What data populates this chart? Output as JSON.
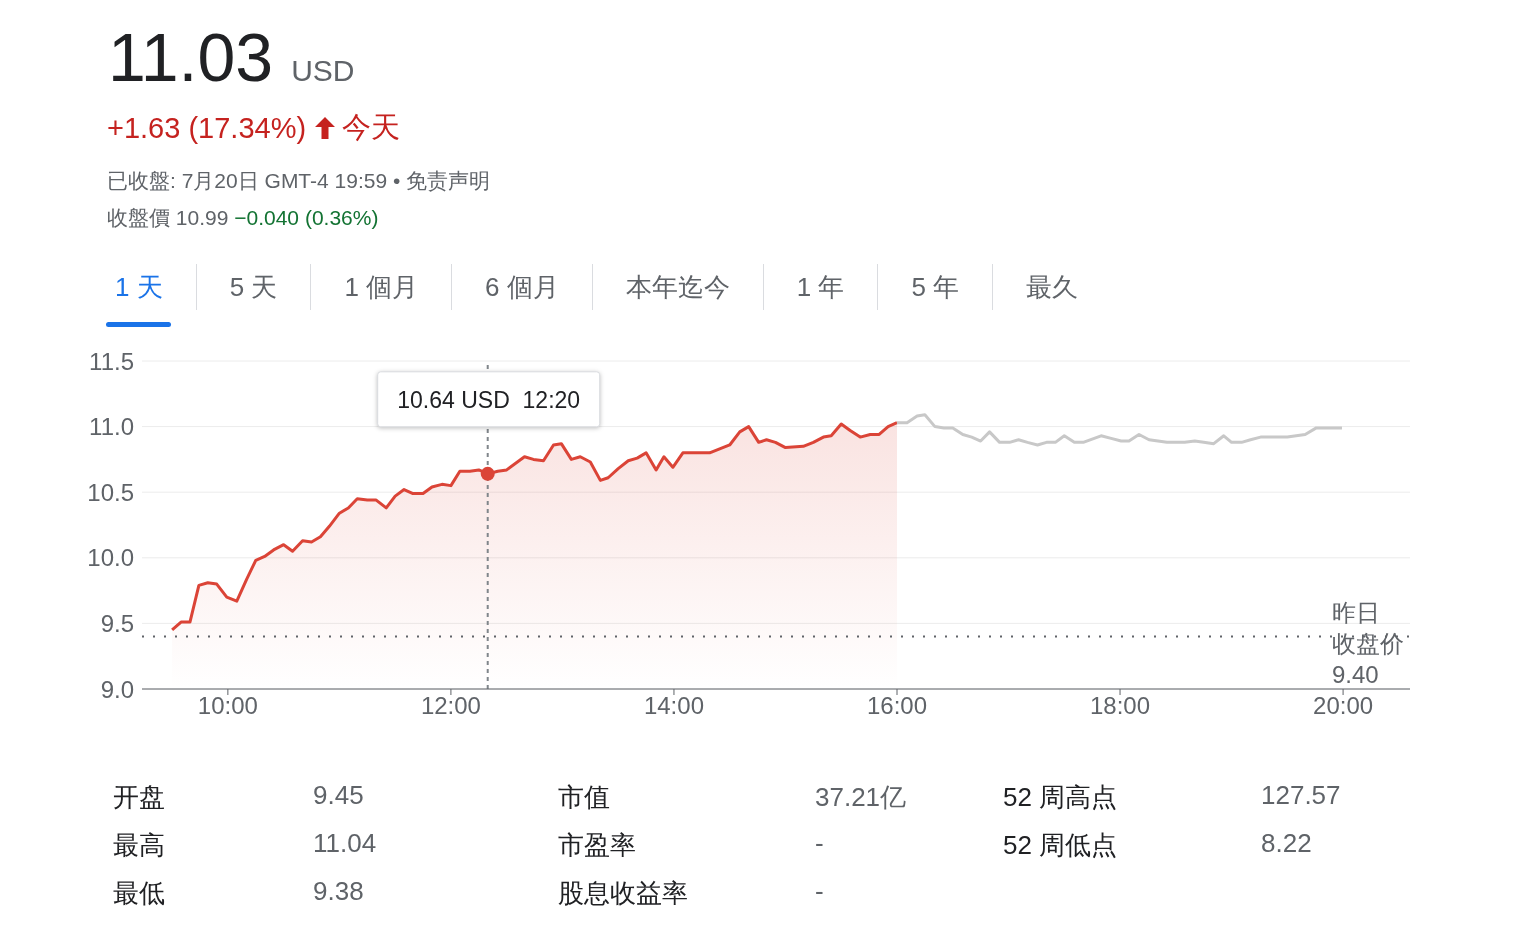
{
  "chart_data": {
    "type": "area",
    "title": "11.03 USD",
    "subtitle": "+1.63 (17.34%) 今天",
    "annotations": [
      "已收盤: 7月20日 GMT-4 19:59 • 免责声明",
      "收盤價 10.99",
      "−0.040 (0.36%)",
      "1 天",
      "5 天",
      "1 個月",
      "6 個月",
      "本年迄今",
      "1 年",
      "5 年",
      "最久",
      "开盘",
      "9.45",
      "市值",
      "37.21亿",
      "52 周高点",
      "127.57",
      "最高",
      "11.04",
      "市盈率",
      "-",
      "52 周低点",
      "8.22",
      "最低",
      "9.38",
      "股息收益率",
      "-",
      {
        "text": "10.64 USD  12:20",
        "x": 12.33,
        "y": 10.64
      }
    ],
    "xlim": [
      9.23,
      20.6
    ],
    "xticks": [
      {
        "value": 10,
        "label": "10:00"
      },
      {
        "value": 12,
        "label": "12:00"
      },
      {
        "value": 14,
        "label": "14:00"
      },
      {
        "value": 16,
        "label": "16:00"
      },
      {
        "value": 18,
        "label": "18:00"
      },
      {
        "value": 20,
        "label": "20:00"
      }
    ],
    "ylim": [
      9.0,
      11.5
    ],
    "yticks": [
      {
        "value": 9,
        "label": "9.0"
      },
      9.5,
      {
        "value": 10,
        "label": "10.0"
      },
      10.5,
      {
        "value": 11,
        "label": "11.0"
      },
      11.5
    ],
    "grid": "y",
    "legend": false,
    "marker": "none",
    "line_style": "solid",
    "ref_lines": [
      {
        "axis": "y",
        "value": 9.4,
        "label": "昨日收盘价\n9.40",
        "color": "#5f6368",
        "line_style": "dotted"
      },
      {
        "axis": "x",
        "value": 12.33,
        "color": "#80868b",
        "line_style": "dashed"
      }
    ],
    "series": [
      {
        "color": "#db4437",
        "x": [
          9.5,
          9.58,
          9.66,
          9.74,
          9.82,
          9.9,
          9.99,
          10.08,
          10.17,
          10.25,
          10.33,
          10.41,
          10.5,
          10.58,
          10.67,
          10.75,
          10.83,
          10.91,
          11.0,
          11.08,
          11.16,
          11.25,
          11.33,
          11.42,
          11.5,
          11.58,
          11.66,
          11.75,
          11.83,
          11.92,
          12.0,
          12.08,
          12.17,
          12.25,
          12.33,
          12.42,
          12.5,
          12.66,
          12.74,
          12.83,
          12.92,
          12.99,
          13.08,
          13.16,
          13.25,
          13.34,
          13.41,
          13.5,
          13.59,
          13.67,
          13.75,
          13.84,
          13.91,
          13.99,
          14.08,
          14.17,
          14.32,
          14.41,
          14.5,
          14.59,
          14.67,
          14.76,
          14.83,
          14.91,
          15.0,
          15.16,
          15.25,
          15.34,
          15.41,
          15.5,
          15.58,
          15.67,
          15.76,
          15.84,
          15.92,
          16.0
        ],
        "values": [
          9.45,
          9.51,
          9.51,
          9.79,
          9.81,
          9.8,
          9.7,
          9.67,
          9.84,
          9.98,
          10.01,
          10.06,
          10.1,
          10.05,
          10.13,
          10.12,
          10.16,
          10.24,
          10.34,
          10.38,
          10.45,
          10.44,
          10.44,
          10.38,
          10.47,
          10.52,
          10.49,
          10.49,
          10.54,
          10.56,
          10.55,
          10.66,
          10.66,
          10.67,
          10.64,
          10.66,
          10.67,
          10.77,
          10.75,
          10.74,
          10.86,
          10.87,
          10.75,
          10.77,
          10.73,
          10.59,
          10.61,
          10.68,
          10.74,
          10.76,
          10.8,
          10.67,
          10.77,
          10.69,
          10.8,
          10.8,
          10.8,
          10.83,
          10.86,
          10.96,
          11.0,
          10.88,
          10.9,
          10.88,
          10.84,
          10.85,
          10.88,
          10.92,
          10.93,
          11.02,
          10.97,
          10.92,
          10.94,
          10.94,
          11.0,
          11.03
        ]
      },
      {
        "type": "line",
        "color": "#c8c8c8",
        "x": [
          16.0,
          16.09,
          16.18,
          16.25,
          16.34,
          16.42,
          16.5,
          16.59,
          16.67,
          16.75,
          16.83,
          16.92,
          17.01,
          17.09,
          17.17,
          17.26,
          17.34,
          17.42,
          17.5,
          17.59,
          17.67,
          17.83,
          17.92,
          18.01,
          18.08,
          18.17,
          18.26,
          18.42,
          18.58,
          18.67,
          18.75,
          18.84,
          18.93,
          19.0,
          19.09,
          19.17,
          19.26,
          19.5,
          19.66,
          19.76,
          19.99
        ],
        "values": [
          11.03,
          11.03,
          11.08,
          11.09,
          11.0,
          10.99,
          10.99,
          10.94,
          10.92,
          10.89,
          10.96,
          10.88,
          10.88,
          10.9,
          10.88,
          10.86,
          10.88,
          10.88,
          10.93,
          10.88,
          10.88,
          10.93,
          10.91,
          10.89,
          10.89,
          10.94,
          10.9,
          10.88,
          10.88,
          10.89,
          10.88,
          10.87,
          10.93,
          10.88,
          10.88,
          10.9,
          10.92,
          10.92,
          10.94,
          10.99,
          10.99
        ]
      }
    ]
  }
}
